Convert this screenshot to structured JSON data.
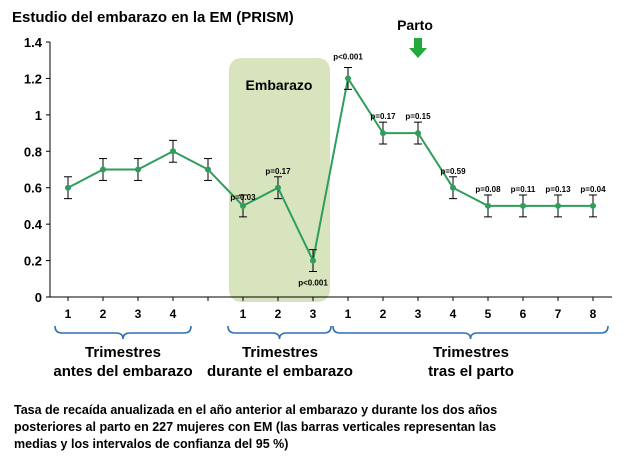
{
  "chart_data": {
    "type": "line",
    "title": "Estudio del embarazo en la EM (PRISM)",
    "xlabel": "",
    "ylabel": "",
    "ylim": [
      0,
      1.4
    ],
    "yticks": [
      "0",
      "0.2",
      "0.4",
      "0.6",
      "0.8",
      "1",
      "1.2",
      "1.4"
    ],
    "grid": false,
    "series_color": "#2e9e5b",
    "error_bar_color": "#000000",
    "shaded_period_color": "#d7e4bd",
    "shaded_period_label": "Embarazo",
    "annotation": {
      "label": "Parto",
      "arrow_color": "#22aa3c",
      "at_point": 10
    },
    "groups": [
      {
        "label_line1": "Trimestres",
        "label_line2": "antes del embarazo",
        "ticks": [
          "1",
          "2",
          "3",
          "4"
        ]
      },
      {
        "label_line1": "Trimestres",
        "label_line2": "durante el embarazo",
        "ticks": [
          "1",
          "2",
          "3"
        ]
      },
      {
        "label_line1": "Trimestres",
        "label_line2": "tras el parto",
        "ticks": [
          "1",
          "2",
          "3",
          "4",
          "5",
          "6",
          "7",
          "8"
        ]
      }
    ],
    "points": [
      {
        "y": 0.6,
        "lo": 0.54,
        "hi": 0.66,
        "p": ""
      },
      {
        "y": 0.7,
        "lo": 0.64,
        "hi": 0.76,
        "p": ""
      },
      {
        "y": 0.7,
        "lo": 0.64,
        "hi": 0.76,
        "p": ""
      },
      {
        "y": 0.8,
        "lo": 0.74,
        "hi": 0.86,
        "p": ""
      },
      {
        "y": 0.7,
        "lo": 0.64,
        "hi": 0.76,
        "p": ""
      },
      {
        "y": 0.5,
        "lo": 0.44,
        "hi": 0.56,
        "p": "p=0.03"
      },
      {
        "y": 0.6,
        "lo": 0.54,
        "hi": 0.66,
        "p": "p=0.17"
      },
      {
        "y": 0.2,
        "lo": 0.14,
        "hi": 0.26,
        "p": "p<0.001"
      },
      {
        "y": 1.2,
        "lo": 1.14,
        "hi": 1.26,
        "p": "p<0.001"
      },
      {
        "y": 0.9,
        "lo": 0.84,
        "hi": 0.96,
        "p": "p=0.17"
      },
      {
        "y": 0.9,
        "lo": 0.84,
        "hi": 0.96,
        "p": "p=0.15"
      },
      {
        "y": 0.6,
        "lo": 0.54,
        "hi": 0.66,
        "p": "p=0.59"
      },
      {
        "y": 0.5,
        "lo": 0.44,
        "hi": 0.56,
        "p": "p=0.08"
      },
      {
        "y": 0.5,
        "lo": 0.44,
        "hi": 0.56,
        "p": "p=0.11"
      },
      {
        "y": 0.5,
        "lo": 0.44,
        "hi": 0.56,
        "p": "p=0.13"
      },
      {
        "y": 0.5,
        "lo": 0.44,
        "hi": 0.56,
        "p": "p=0.04"
      }
    ]
  },
  "caption": {
    "line1": "Tasa de recaída anualizada en el año anterior al embarazo y durante los dos años",
    "line2": "posteriores al parto en 227 mujeres con EM (las barras verticales representan las",
    "line3": "medias y los intervalos de confianza del 95 %)"
  }
}
